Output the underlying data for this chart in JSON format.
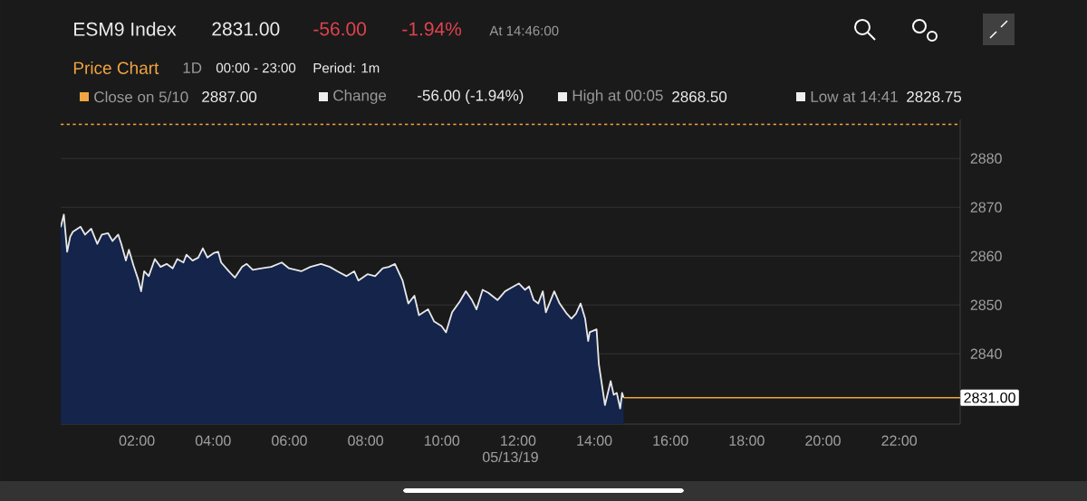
{
  "chart_data": {
    "type": "area",
    "title": "ESM9 Index",
    "annotations": [
      "2831.00",
      "-56.00",
      "-1.94%",
      "At 14:46:00",
      "Price Chart",
      "1D",
      "00:00 - 23:00",
      "Period: 1m",
      "Close on 5/10",
      "2887.00",
      "Change",
      "-56.00 (-1.94%)",
      "High at 00:05",
      "2868.50",
      "Low at 14:41",
      "2828.75"
    ],
    "xlabel": "05/13/19",
    "x": [
      0,
      0.083,
      0.17,
      0.25,
      0.32,
      0.52,
      0.64,
      0.8,
      0.96,
      1.08,
      1.24,
      1.36,
      1.51,
      1.59,
      1.71,
      1.79,
      1.91,
      2.03,
      2.11,
      2.19,
      2.31,
      2.47,
      2.62,
      2.78,
      2.94,
      3.06,
      3.22,
      3.3,
      3.46,
      3.61,
      3.73,
      3.85,
      4.01,
      4.13,
      4.21,
      4.41,
      4.57,
      4.76,
      4.88,
      5.04,
      5.28,
      5.52,
      5.8,
      5.99,
      6.31,
      6.55,
      6.83,
      7.06,
      7.26,
      7.5,
      7.7,
      7.81,
      8.05,
      8.25,
      8.45,
      8.61,
      8.77,
      8.97,
      9.12,
      9.28,
      9.4,
      9.64,
      9.8,
      9.99,
      10.11,
      10.27,
      10.47,
      10.63,
      10.79,
      10.91,
      11.07,
      11.22,
      11.46,
      11.66,
      11.82,
      12.02,
      12.18,
      12.29,
      12.41,
      12.53,
      12.65,
      12.73,
      12.95,
      13.09,
      13.28,
      13.4,
      13.52,
      13.64,
      13.76,
      13.84,
      13.88,
      14.06,
      14.12,
      14.28,
      14.43,
      14.51,
      14.59,
      14.68,
      14.73,
      14.77
    ],
    "series": [
      {
        "color": "#14244a",
        "values": [
          2865.9,
          2868.5,
          2860.9,
          2864.0,
          2865.0,
          2866.0,
          2864.4,
          2865.6,
          2862.5,
          2864.4,
          2864.7,
          2863.1,
          2864.4,
          2862.5,
          2859.1,
          2861.3,
          2858.1,
          2855.3,
          2852.8,
          2856.9,
          2855.9,
          2859.4,
          2857.8,
          2858.4,
          2857.5,
          2859.4,
          2858.7,
          2860.3,
          2859.1,
          2859.7,
          2861.6,
          2859.7,
          2860.6,
          2860.9,
          2858.7,
          2856.9,
          2855.6,
          2857.8,
          2858.4,
          2857.2,
          2857.5,
          2857.8,
          2858.7,
          2857.5,
          2856.9,
          2857.8,
          2858.4,
          2857.8,
          2856.9,
          2855.9,
          2856.9,
          2855.0,
          2856.3,
          2855.9,
          2857.5,
          2857.8,
          2858.4,
          2855.0,
          2850.3,
          2851.9,
          2847.9,
          2849.1,
          2846.6,
          2845.7,
          2844.4,
          2848.5,
          2850.7,
          2852.8,
          2851.0,
          2849.1,
          2853.1,
          2852.5,
          2851.0,
          2852.8,
          2853.5,
          2854.4,
          2853.1,
          2853.8,
          2851.0,
          2850.3,
          2852.8,
          2848.5,
          2852.8,
          2850.3,
          2848.2,
          2847.2,
          2848.2,
          2850.3,
          2847.2,
          2842.6,
          2844.4,
          2845.0,
          2837.9,
          2829.5,
          2834.4,
          2831.6,
          2832.0,
          2828.8,
          2832.0,
          2831.0
        ]
      }
    ],
    "xlim": [
      0,
      23.6
    ],
    "ylim": [
      2825.6,
      2888
    ],
    "xticks": [
      {
        "value": 2,
        "label": "02:00"
      },
      {
        "value": 4,
        "label": "04:00"
      },
      {
        "value": 6,
        "label": "06:00"
      },
      {
        "value": 8,
        "label": "08:00"
      },
      {
        "value": 10,
        "label": "10:00"
      },
      {
        "value": 12,
        "label": "12:00"
      },
      {
        "value": 14,
        "label": "14:00"
      },
      {
        "value": 16,
        "label": "16:00"
      },
      {
        "value": 18,
        "label": "18:00"
      },
      {
        "value": 20,
        "label": "20:00"
      },
      {
        "value": 22,
        "label": "22:00"
      }
    ],
    "yticks": [
      2840,
      2850,
      2860,
      2870,
      2880
    ],
    "grid": "y",
    "ref_lines": [
      {
        "axis": "y",
        "value": 2887,
        "color": "#f0a542",
        "line_style": "dashed"
      },
      {
        "axis": "y",
        "value": 2831,
        "label": "2831.00",
        "color": "#f0a542"
      }
    ]
  }
}
